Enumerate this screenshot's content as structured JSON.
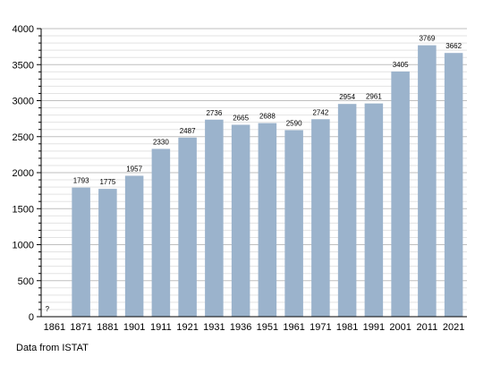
{
  "chart_data": {
    "type": "bar",
    "categories": [
      "1861",
      "1871",
      "1881",
      "1901",
      "1911",
      "1921",
      "1931",
      "1936",
      "1951",
      "1961",
      "1971",
      "1981",
      "1991",
      "2001",
      "2011",
      "2021"
    ],
    "values": [
      null,
      1793,
      1775,
      1957,
      2330,
      2487,
      2736,
      2665,
      2688,
      2590,
      2742,
      2954,
      2961,
      3405,
      3769,
      3662
    ],
    "data_labels": [
      "?",
      "1793",
      "1775",
      "1957",
      "2330",
      "2487",
      "2736",
      "2665",
      "2688",
      "2590",
      "2742",
      "2954",
      "2961",
      "3405",
      "3769",
      "3662"
    ],
    "yticks": [
      "0",
      "500",
      "1000",
      "1500",
      "2000",
      "2500",
      "3000",
      "3500",
      "4000"
    ],
    "ylim": [
      0,
      4000
    ],
    "grid": true,
    "legend": "none",
    "colors": {
      "bar": "#9bb3cc",
      "grid": "#bfbfbf",
      "axis": "#000000",
      "text": "#000000"
    }
  },
  "footer": {
    "source": "Data from ISTAT"
  }
}
